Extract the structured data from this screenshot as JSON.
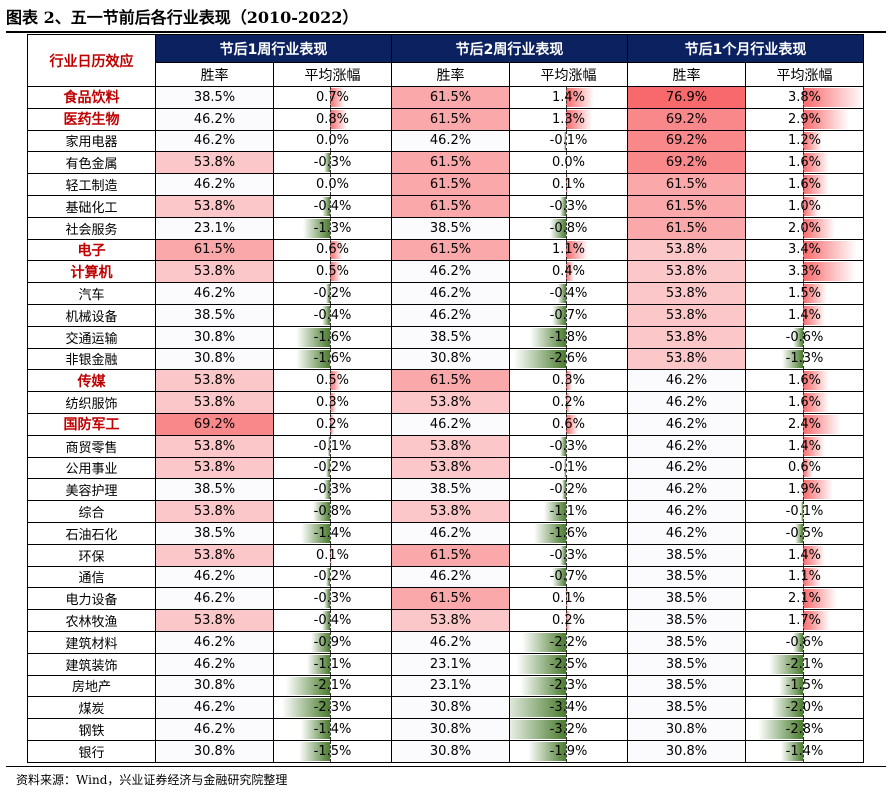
{
  "title": "图表 2、五一节前后各行业表现（2010-2022）",
  "source": "资料来源：Wind，兴业证券经济与金融研究院整理",
  "table": {
    "corner_label": "行业日历效应",
    "groups": [
      "节后1周行业表现",
      "节后2周行业表现",
      "节后1个月行业表现"
    ],
    "sub_headers": [
      "胜率",
      "平均涨幅",
      "胜率",
      "平均涨幅",
      "胜率",
      "平均涨幅"
    ],
    "colors": {
      "header_bg": "#0b2160",
      "highlight_text": "#c00000",
      "positive": "#f8696b",
      "negative": "#497b2d"
    },
    "rows": [
      {
        "name": "食品饮料",
        "hl": true,
        "w1_rate": "38.5%",
        "w1_chg": "0.7%",
        "w2_rate": "61.5%",
        "w2_chg": "1.4%",
        "m1_rate": "76.9%",
        "m1_chg": "3.8%"
      },
      {
        "name": "医药生物",
        "hl": true,
        "w1_rate": "46.2%",
        "w1_chg": "0.8%",
        "w2_rate": "61.5%",
        "w2_chg": "1.3%",
        "m1_rate": "69.2%",
        "m1_chg": "2.9%"
      },
      {
        "name": "家用电器",
        "hl": false,
        "w1_rate": "46.2%",
        "w1_chg": "0.0%",
        "w2_rate": "46.2%",
        "w2_chg": "-0.1%",
        "m1_rate": "69.2%",
        "m1_chg": "1.2%"
      },
      {
        "name": "有色金属",
        "hl": false,
        "w1_rate": "53.8%",
        "w1_chg": "-0.3%",
        "w2_rate": "61.5%",
        "w2_chg": "0.0%",
        "m1_rate": "69.2%",
        "m1_chg": "1.6%"
      },
      {
        "name": "轻工制造",
        "hl": false,
        "w1_rate": "46.2%",
        "w1_chg": "0.0%",
        "w2_rate": "61.5%",
        "w2_chg": "0.1%",
        "m1_rate": "61.5%",
        "m1_chg": "1.6%"
      },
      {
        "name": "基础化工",
        "hl": false,
        "w1_rate": "53.8%",
        "w1_chg": "-0.4%",
        "w2_rate": "61.5%",
        "w2_chg": "-0.3%",
        "m1_rate": "61.5%",
        "m1_chg": "1.0%"
      },
      {
        "name": "社会服务",
        "hl": false,
        "w1_rate": "23.1%",
        "w1_chg": "-1.3%",
        "w2_rate": "38.5%",
        "w2_chg": "-0.8%",
        "m1_rate": "61.5%",
        "m1_chg": "2.0%"
      },
      {
        "name": "电子",
        "hl": true,
        "w1_rate": "61.5%",
        "w1_chg": "0.6%",
        "w2_rate": "61.5%",
        "w2_chg": "1.1%",
        "m1_rate": "53.8%",
        "m1_chg": "3.4%"
      },
      {
        "name": "计算机",
        "hl": true,
        "w1_rate": "53.8%",
        "w1_chg": "0.5%",
        "w2_rate": "46.2%",
        "w2_chg": "0.4%",
        "m1_rate": "53.8%",
        "m1_chg": "3.3%"
      },
      {
        "name": "汽车",
        "hl": false,
        "w1_rate": "46.2%",
        "w1_chg": "-0.2%",
        "w2_rate": "46.2%",
        "w2_chg": "-0.4%",
        "m1_rate": "53.8%",
        "m1_chg": "1.5%"
      },
      {
        "name": "机械设备",
        "hl": false,
        "w1_rate": "38.5%",
        "w1_chg": "-0.4%",
        "w2_rate": "46.2%",
        "w2_chg": "-0.7%",
        "m1_rate": "53.8%",
        "m1_chg": "1.4%"
      },
      {
        "name": "交通运输",
        "hl": false,
        "w1_rate": "30.8%",
        "w1_chg": "-1.6%",
        "w2_rate": "38.5%",
        "w2_chg": "-1.8%",
        "m1_rate": "53.8%",
        "m1_chg": "-0.6%"
      },
      {
        "name": "非银金融",
        "hl": false,
        "w1_rate": "30.8%",
        "w1_chg": "-1.6%",
        "w2_rate": "30.8%",
        "w2_chg": "-2.6%",
        "m1_rate": "53.8%",
        "m1_chg": "-1.3%"
      },
      {
        "name": "传媒",
        "hl": true,
        "w1_rate": "53.8%",
        "w1_chg": "0.5%",
        "w2_rate": "61.5%",
        "w2_chg": "0.3%",
        "m1_rate": "46.2%",
        "m1_chg": "1.6%"
      },
      {
        "name": "纺织服饰",
        "hl": false,
        "w1_rate": "53.8%",
        "w1_chg": "0.3%",
        "w2_rate": "53.8%",
        "w2_chg": "0.2%",
        "m1_rate": "46.2%",
        "m1_chg": "1.6%"
      },
      {
        "name": "国防军工",
        "hl": true,
        "w1_rate": "69.2%",
        "w1_chg": "0.2%",
        "w2_rate": "46.2%",
        "w2_chg": "0.6%",
        "m1_rate": "46.2%",
        "m1_chg": "2.4%"
      },
      {
        "name": "商贸零售",
        "hl": false,
        "w1_rate": "53.8%",
        "w1_chg": "-0.1%",
        "w2_rate": "53.8%",
        "w2_chg": "-0.3%",
        "m1_rate": "46.2%",
        "m1_chg": "1.4%"
      },
      {
        "name": "公用事业",
        "hl": false,
        "w1_rate": "53.8%",
        "w1_chg": "-0.2%",
        "w2_rate": "53.8%",
        "w2_chg": "-0.1%",
        "m1_rate": "46.2%",
        "m1_chg": "0.6%"
      },
      {
        "name": "美容护理",
        "hl": false,
        "w1_rate": "38.5%",
        "w1_chg": "-0.3%",
        "w2_rate": "38.5%",
        "w2_chg": "-0.2%",
        "m1_rate": "46.2%",
        "m1_chg": "1.9%"
      },
      {
        "name": "综合",
        "hl": false,
        "w1_rate": "53.8%",
        "w1_chg": "-0.8%",
        "w2_rate": "53.8%",
        "w2_chg": "-1.1%",
        "m1_rate": "46.2%",
        "m1_chg": "-0.1%"
      },
      {
        "name": "石油石化",
        "hl": false,
        "w1_rate": "38.5%",
        "w1_chg": "-1.4%",
        "w2_rate": "46.2%",
        "w2_chg": "-1.6%",
        "m1_rate": "46.2%",
        "m1_chg": "-0.5%"
      },
      {
        "name": "环保",
        "hl": false,
        "w1_rate": "53.8%",
        "w1_chg": "0.1%",
        "w2_rate": "61.5%",
        "w2_chg": "-0.3%",
        "m1_rate": "38.5%",
        "m1_chg": "1.4%"
      },
      {
        "name": "通信",
        "hl": false,
        "w1_rate": "46.2%",
        "w1_chg": "-0.2%",
        "w2_rate": "46.2%",
        "w2_chg": "-0.7%",
        "m1_rate": "38.5%",
        "m1_chg": "1.1%"
      },
      {
        "name": "电力设备",
        "hl": false,
        "w1_rate": "46.2%",
        "w1_chg": "-0.3%",
        "w2_rate": "61.5%",
        "w2_chg": "0.1%",
        "m1_rate": "38.5%",
        "m1_chg": "2.1%"
      },
      {
        "name": "农林牧渔",
        "hl": false,
        "w1_rate": "53.8%",
        "w1_chg": "-0.4%",
        "w2_rate": "53.8%",
        "w2_chg": "0.2%",
        "m1_rate": "38.5%",
        "m1_chg": "1.7%"
      },
      {
        "name": "建筑材料",
        "hl": false,
        "w1_rate": "46.2%",
        "w1_chg": "-0.9%",
        "w2_rate": "46.2%",
        "w2_chg": "-2.2%",
        "m1_rate": "38.5%",
        "m1_chg": "-0.6%"
      },
      {
        "name": "建筑装饰",
        "hl": false,
        "w1_rate": "46.2%",
        "w1_chg": "-1.1%",
        "w2_rate": "23.1%",
        "w2_chg": "-2.5%",
        "m1_rate": "38.5%",
        "m1_chg": "-2.1%"
      },
      {
        "name": "房地产",
        "hl": false,
        "w1_rate": "30.8%",
        "w1_chg": "-2.1%",
        "w2_rate": "23.1%",
        "w2_chg": "-2.3%",
        "m1_rate": "38.5%",
        "m1_chg": "-1.5%"
      },
      {
        "name": "煤炭",
        "hl": false,
        "w1_rate": "46.2%",
        "w1_chg": "-2.3%",
        "w2_rate": "30.8%",
        "w2_chg": "-3.4%",
        "m1_rate": "38.5%",
        "m1_chg": "-2.0%"
      },
      {
        "name": "钢铁",
        "hl": false,
        "w1_rate": "46.2%",
        "w1_chg": "-1.4%",
        "w2_rate": "30.8%",
        "w2_chg": "-3.2%",
        "m1_rate": "30.8%",
        "m1_chg": "-2.8%"
      },
      {
        "name": "银行",
        "hl": false,
        "w1_rate": "30.8%",
        "w1_chg": "-1.5%",
        "w2_rate": "30.8%",
        "w2_chg": "-1.9%",
        "m1_rate": "30.8%",
        "m1_chg": "-1.4%"
      }
    ]
  }
}
